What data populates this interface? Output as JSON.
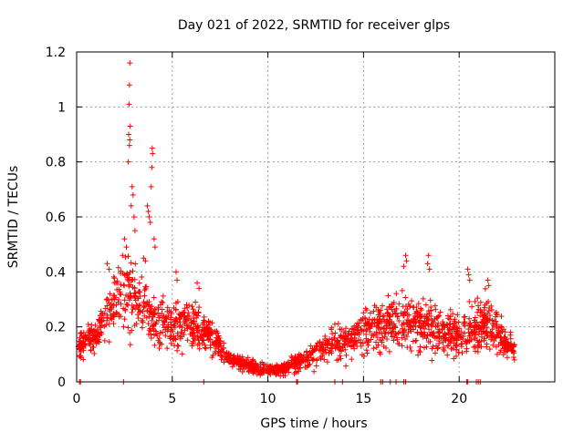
{
  "chart_data": {
    "type": "scatter",
    "title": "Day 021 of 2022, SRMTID for receiver glps",
    "xlabel": "GPS time / hours",
    "ylabel": "SRMTID / TECUs",
    "xlim": [
      0,
      25
    ],
    "ylim": [
      0,
      1.2
    ],
    "xticks": [
      0,
      5,
      10,
      15,
      20
    ],
    "xtick_labels": [
      "0",
      "5",
      "10",
      "15",
      "20"
    ],
    "yticks": [
      0,
      0.2,
      0.4,
      0.6,
      0.8,
      1.0,
      1.2
    ],
    "ytick_labels": [
      "0",
      "0.2",
      "0.4",
      "0.6",
      "0.8",
      "1",
      "1.2"
    ],
    "grid": true,
    "marker": "+",
    "color": "#ff0000",
    "series": [
      {
        "name": "SRMTID",
        "profile_hours": [
          0.1,
          0.5,
          1.0,
          1.5,
          2.0,
          2.5,
          2.8,
          3.2,
          3.6,
          4.0,
          4.5,
          5.0,
          5.5,
          6.0,
          6.5,
          7.0,
          7.5,
          8.0,
          8.5,
          9.0,
          9.5,
          10.0,
          10.5,
          11.0,
          11.5,
          12.0,
          12.5,
          13.0,
          13.5,
          14.0,
          14.5,
          15.0,
          15.5,
          16.0,
          16.5,
          17.0,
          17.5,
          18.0,
          18.5,
          19.0,
          19.5,
          20.0,
          20.5,
          21.0,
          21.5,
          22.0,
          22.5,
          22.9
        ],
        "profile_median": [
          0.13,
          0.15,
          0.17,
          0.24,
          0.3,
          0.33,
          0.36,
          0.3,
          0.27,
          0.22,
          0.21,
          0.2,
          0.21,
          0.22,
          0.2,
          0.17,
          0.12,
          0.08,
          0.07,
          0.06,
          0.05,
          0.045,
          0.045,
          0.05,
          0.07,
          0.09,
          0.11,
          0.12,
          0.14,
          0.15,
          0.16,
          0.18,
          0.19,
          0.2,
          0.21,
          0.22,
          0.22,
          0.21,
          0.2,
          0.19,
          0.18,
          0.17,
          0.18,
          0.2,
          0.22,
          0.18,
          0.14,
          0.12
        ],
        "profile_spread": [
          0.04,
          0.04,
          0.05,
          0.07,
          0.09,
          0.1,
          0.14,
          0.1,
          0.1,
          0.07,
          0.07,
          0.06,
          0.07,
          0.07,
          0.06,
          0.05,
          0.04,
          0.025,
          0.02,
          0.02,
          0.02,
          0.015,
          0.015,
          0.02,
          0.03,
          0.03,
          0.04,
          0.04,
          0.05,
          0.05,
          0.05,
          0.06,
          0.07,
          0.07,
          0.08,
          0.08,
          0.08,
          0.08,
          0.08,
          0.07,
          0.07,
          0.07,
          0.07,
          0.08,
          0.08,
          0.07,
          0.04,
          0.03
        ],
        "spikes": [
          {
            "x": 2.78,
            "y": 1.16
          },
          {
            "x": 2.76,
            "y": 1.08
          },
          {
            "x": 2.74,
            "y": 1.01
          },
          {
            "x": 2.8,
            "y": 0.93
          },
          {
            "x": 2.72,
            "y": 0.9
          },
          {
            "x": 2.78,
            "y": 0.88
          },
          {
            "x": 2.76,
            "y": 0.86
          },
          {
            "x": 2.7,
            "y": 0.8
          },
          {
            "x": 2.9,
            "y": 0.71
          },
          {
            "x": 2.95,
            "y": 0.68
          },
          {
            "x": 2.85,
            "y": 0.64
          },
          {
            "x": 3.0,
            "y": 0.6
          },
          {
            "x": 3.05,
            "y": 0.55
          },
          {
            "x": 3.7,
            "y": 0.64
          },
          {
            "x": 3.75,
            "y": 0.62
          },
          {
            "x": 3.8,
            "y": 0.6
          },
          {
            "x": 3.85,
            "y": 0.58
          },
          {
            "x": 3.95,
            "y": 0.85
          },
          {
            "x": 3.97,
            "y": 0.83
          },
          {
            "x": 3.93,
            "y": 0.78
          },
          {
            "x": 3.9,
            "y": 0.71
          },
          {
            "x": 4.05,
            "y": 0.52
          },
          {
            "x": 4.1,
            "y": 0.49
          },
          {
            "x": 2.5,
            "y": 0.52
          },
          {
            "x": 2.6,
            "y": 0.49
          },
          {
            "x": 2.4,
            "y": 0.46
          },
          {
            "x": 1.6,
            "y": 0.43
          },
          {
            "x": 1.7,
            "y": 0.41
          },
          {
            "x": 3.5,
            "y": 0.45
          },
          {
            "x": 3.6,
            "y": 0.44
          },
          {
            "x": 17.2,
            "y": 0.46
          },
          {
            "x": 17.25,
            "y": 0.44
          },
          {
            "x": 17.1,
            "y": 0.42
          },
          {
            "x": 18.4,
            "y": 0.46
          },
          {
            "x": 18.35,
            "y": 0.43
          },
          {
            "x": 18.45,
            "y": 0.41
          },
          {
            "x": 20.45,
            "y": 0.41
          },
          {
            "x": 20.5,
            "y": 0.39
          },
          {
            "x": 20.55,
            "y": 0.37
          },
          {
            "x": 21.5,
            "y": 0.37
          },
          {
            "x": 21.55,
            "y": 0.35
          },
          {
            "x": 6.3,
            "y": 0.36
          },
          {
            "x": 6.4,
            "y": 0.34
          },
          {
            "x": 5.2,
            "y": 0.4
          },
          {
            "x": 5.25,
            "y": 0.37
          }
        ],
        "zero_points_x": [
          0.15,
          0.2,
          2.45,
          6.65,
          11.5,
          11.55,
          13.5,
          13.9,
          15.9,
          16.0,
          16.4,
          16.7,
          17.1,
          17.2,
          20.4,
          20.45,
          20.9,
          21.0,
          21.1
        ]
      }
    ]
  }
}
